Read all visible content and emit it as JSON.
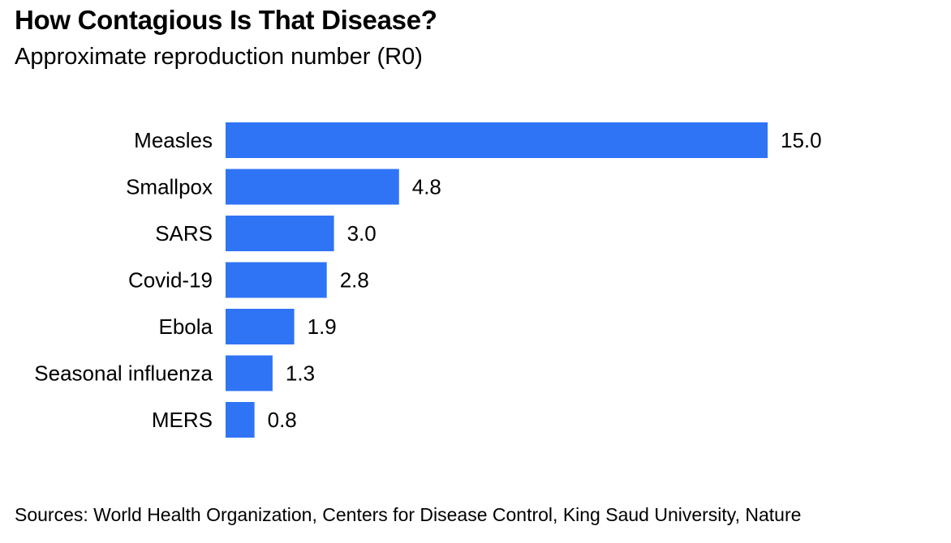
{
  "chart_data": {
    "type": "bar",
    "orientation": "horizontal",
    "title": "How Contagious Is That Disease?",
    "subtitle": "Approximate reproduction number (R0)",
    "categories": [
      "Measles",
      "Smallpox",
      "SARS",
      "Covid-19",
      "Ebola",
      "Seasonal influenza",
      "MERS"
    ],
    "values": [
      15.0,
      4.8,
      3.0,
      2.8,
      1.9,
      1.3,
      0.8
    ],
    "value_labels": [
      "15.0",
      "4.8",
      "3.0",
      "2.8",
      "1.9",
      "1.3",
      "0.8"
    ],
    "xlim": [
      0,
      15
    ],
    "grid": false,
    "legend": "none",
    "bar_color": "#2f74f5",
    "source": "Sources: World Health Organization, Centers for Disease Control, King Saud University, Nature"
  }
}
